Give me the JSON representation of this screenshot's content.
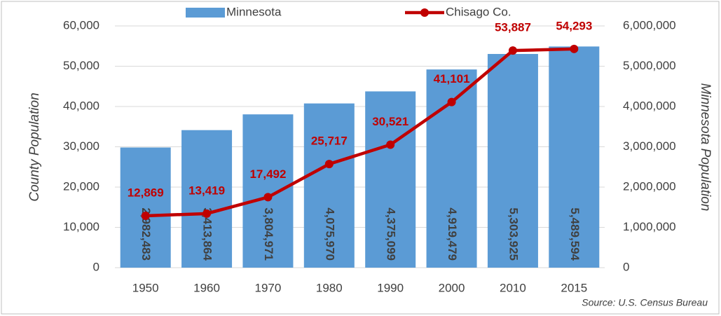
{
  "chart_data": {
    "type": "bar",
    "categories": [
      "1950",
      "1960",
      "1970",
      "1980",
      "1990",
      "2000",
      "2010",
      "2015"
    ],
    "series": [
      {
        "name": "Minnesota",
        "type": "bar",
        "axis": "y2",
        "color": "#5b9bd5",
        "values": [
          2982483,
          3413864,
          3804971,
          4075970,
          4375099,
          4919479,
          5303925,
          5489594
        ],
        "value_labels": [
          "2,982,483",
          "3,413,864",
          "3,804,971",
          "4,075,970",
          "4,375,099",
          "4,919,479",
          "5,303,925",
          "5,489,594"
        ]
      },
      {
        "name": "Chisago Co.",
        "type": "line",
        "color": "#c00000",
        "values": [
          12869,
          13419,
          17492,
          25717,
          30521,
          41101,
          53887,
          54293
        ],
        "value_labels": [
          "12,869",
          "13,419",
          "17,492",
          "25,717",
          "30,521",
          "41,101",
          "53,887",
          "54,293"
        ]
      }
    ],
    "ylabel": "County Population",
    "y2label": "Minnesota Population",
    "ylim": [
      0,
      60000
    ],
    "yticks": [
      0,
      {
        "value": 10000,
        "label": "10,000"
      },
      {
        "value": 20000,
        "label": "20,000"
      },
      {
        "value": 30000,
        "label": "30,000"
      },
      {
        "value": 40000,
        "label": "40,000"
      },
      {
        "value": 50000,
        "label": "50,000"
      },
      {
        "value": 60000,
        "label": "60,000"
      }
    ],
    "y2lim": [
      0,
      6000000
    ],
    "y2ticks": [
      0,
      {
        "value": 1000000,
        "label": "1,000,000"
      },
      {
        "value": 2000000,
        "label": "2,000,000"
      },
      {
        "value": 3000000,
        "label": "3,000,000"
      },
      {
        "value": 4000000,
        "label": "4,000,000"
      },
      {
        "value": 5000000,
        "label": "5,000,000"
      },
      {
        "value": 6000000,
        "label": "6,000,000"
      }
    ],
    "grid": true,
    "legend": "top",
    "source": "Source: U.S. Census Bureau"
  }
}
